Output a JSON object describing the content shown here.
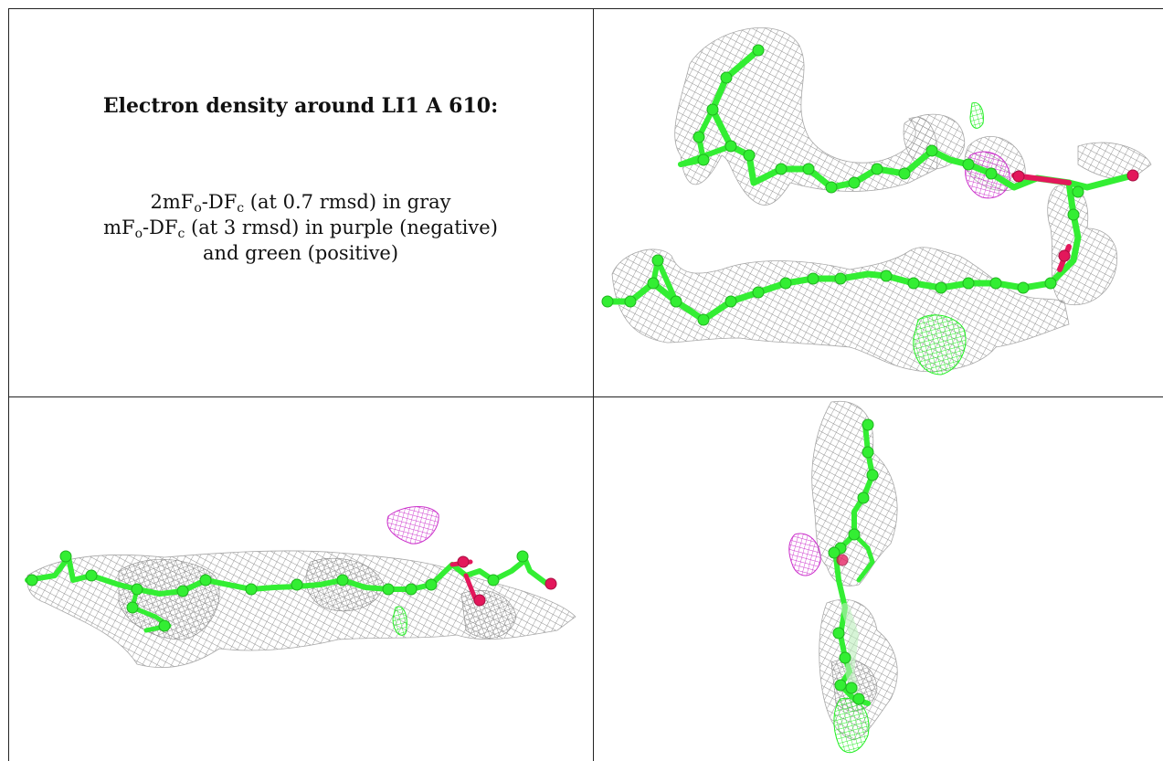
{
  "title": "Electron density around LI1 A 610:",
  "legend": {
    "line1": {
      "prefix": "2mF",
      "sub1": "o",
      "mid": "-DF",
      "sub2": "c",
      "suffix": " (at 0.7 rmsd) in gray"
    },
    "line2": {
      "prefix": "mF",
      "sub1": "o",
      "mid": "-DF",
      "sub2": "c",
      "suffix": " (at 3 rmsd) in purple (negative)"
    },
    "line3": "and green (positive)"
  },
  "colors": {
    "mesh_gray": "#8f8f8f",
    "carbon_green": "#33ee33",
    "oxygen_pink": "#e3175b",
    "negative_purple": "#cc33cc",
    "positive_green": "#22ee22",
    "border": "#222222"
  },
  "panels": [
    {
      "name": "view-top-right",
      "description_icon": "molecule-density-view"
    },
    {
      "name": "view-bottom-left",
      "description_icon": "molecule-density-view"
    },
    {
      "name": "view-bottom-right",
      "description_icon": "molecule-density-view"
    }
  ]
}
